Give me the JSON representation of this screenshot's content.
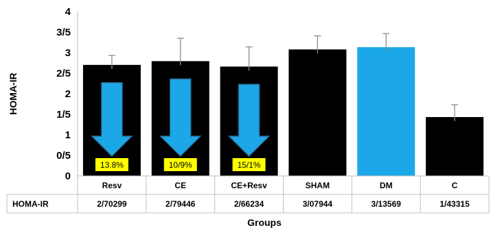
{
  "chart_data": {
    "type": "bar",
    "xlabel": "Groups",
    "ylabel": "HOMA-IR",
    "ylim": [
      0,
      4
    ],
    "y_ticks": [
      {
        "value": 0,
        "label": "0"
      },
      {
        "value": 0.5,
        "label": "0/5"
      },
      {
        "value": 1,
        "label": "1"
      },
      {
        "value": 1.5,
        "label": "1/5"
      },
      {
        "value": 2,
        "label": "2"
      },
      {
        "value": 2.5,
        "label": "2/5"
      },
      {
        "value": 3,
        "label": "3"
      },
      {
        "value": 3.5,
        "label": "3/5"
      },
      {
        "value": 4,
        "label": "4"
      }
    ],
    "categories": [
      "Resv",
      "CE",
      "CE+Resv",
      "SHAM",
      "DM",
      "C"
    ],
    "values": [
      2.70299,
      2.79446,
      2.66234,
      3.07944,
      3.13569,
      1.43315
    ],
    "error": [
      0.23,
      0.56,
      0.48,
      0.33,
      0.33,
      0.3
    ],
    "bar_colors": [
      "#000000",
      "#000000",
      "#000000",
      "#000000",
      "#1ca8e8",
      "#000000"
    ],
    "reduction_labels": [
      "13.8%",
      "10/9%",
      "15/1%",
      "",
      "",
      ""
    ],
    "arrow_color": "#1ca8e8",
    "label_box_color": "#ffff00",
    "grid": false,
    "table": {
      "row_label": "HOMA-IR",
      "values": [
        "2/70299",
        "2/79446",
        "2/66234",
        "3/07944",
        "3/13569",
        "1/43315"
      ]
    }
  }
}
